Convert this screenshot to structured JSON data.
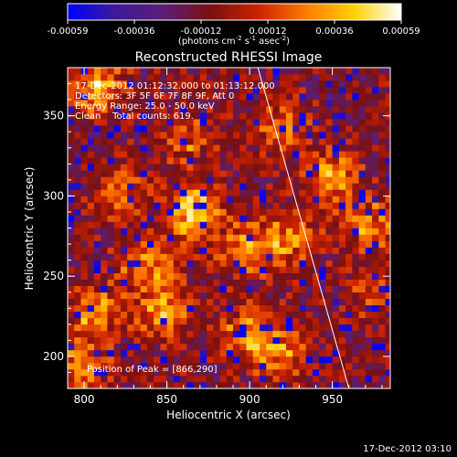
{
  "chart_data": {
    "type": "heatmap",
    "title": "Reconstructed RHESSI Image",
    "xlabel": "Heliocentric X (arcsec)",
    "ylabel": "Heliocentric Y (arcsec)",
    "xlim": [
      790,
      985
    ],
    "ylim": [
      180,
      380
    ],
    "xticks": [
      800,
      850,
      900,
      950
    ],
    "yticks": [
      200,
      250,
      300,
      350
    ],
    "colorbar": {
      "min": -0.00059,
      "max": 0.00059,
      "ticks": [
        "-0.00059",
        "-0.00036",
        "-0.00012",
        "0.00012",
        "0.00036",
        "0.00059"
      ],
      "unit_label": "(photons cm^-2 s^-1 asec^-2)",
      "colors": [
        "#0000ff",
        "#3d1a9a",
        "#5a1e7a",
        "#7a1010",
        "#cc2200",
        "#ff7a00",
        "#ffd000",
        "#ffffff"
      ]
    },
    "annotations": [
      "17-Dec-2012 01:12:32.000 to 01:13:12.000",
      "Detectors: 3F 5F 6F 7F 8F 9F, Att 0",
      "Energy Range: 25.0 - 50.0 keV",
      "Clean    Total counts: 619."
    ],
    "peak_label": "Position of Peak = [866,290]",
    "peak": [
      866,
      290
    ],
    "limb_line": [
      [
        905,
        380
      ],
      [
        960,
        180
      ]
    ],
    "hot_spots": [
      {
        "x": 866,
        "y": 290,
        "level": 0.00059
      },
      {
        "x": 808,
        "y": 368,
        "level": 0.00045
      },
      {
        "x": 838,
        "y": 258,
        "level": 0.00042
      },
      {
        "x": 848,
        "y": 228,
        "level": 0.00044
      },
      {
        "x": 805,
        "y": 228,
        "level": 0.0004
      },
      {
        "x": 898,
        "y": 268,
        "level": 0.00038
      },
      {
        "x": 924,
        "y": 272,
        "level": 0.00035
      },
      {
        "x": 950,
        "y": 312,
        "level": 0.00042
      },
      {
        "x": 973,
        "y": 282,
        "level": 0.00035
      },
      {
        "x": 900,
        "y": 215,
        "level": 0.0004
      },
      {
        "x": 918,
        "y": 200,
        "level": 0.00034
      },
      {
        "x": 862,
        "y": 335,
        "level": 0.00025
      },
      {
        "x": 920,
        "y": 345,
        "level": 0.00028
      },
      {
        "x": 975,
        "y": 240,
        "level": 0.00022
      },
      {
        "x": 822,
        "y": 300,
        "level": 0.0003
      },
      {
        "x": 800,
        "y": 195,
        "level": 0.0003
      }
    ]
  },
  "footer_timestamp": "17-Dec-2012 03:10"
}
